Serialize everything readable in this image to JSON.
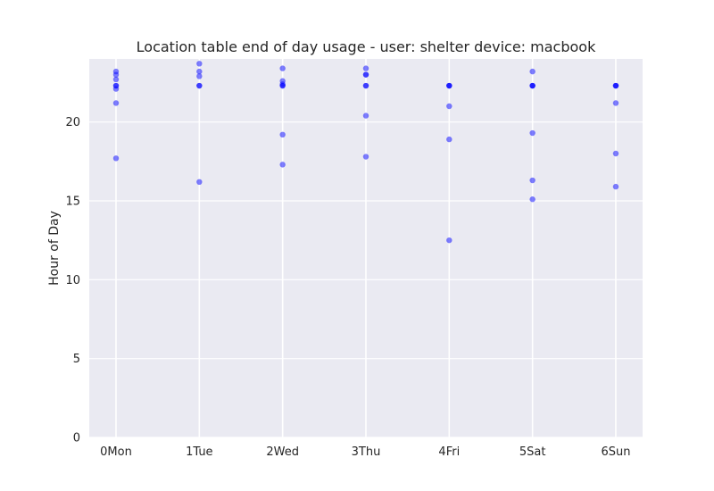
{
  "chart_data": {
    "type": "scatter",
    "title": "Location table end of day usage -  user: shelter device: macbook",
    "xlabel": "",
    "ylabel": "Hour of Day",
    "categories": [
      "0Mon",
      "1Tue",
      "2Wed",
      "3Thu",
      "4Fri",
      "5Sat",
      "6Sun"
    ],
    "ylim": [
      0,
      24
    ],
    "yticks": [
      0,
      5,
      10,
      15,
      20
    ],
    "grid": true,
    "point_color": "#0000ff",
    "background_color": "#eaeaf2",
    "grid_color": "#ffffff",
    "points": [
      {
        "x": 0,
        "y": 23.2
      },
      {
        "x": 0,
        "y": 23.0
      },
      {
        "x": 0,
        "y": 22.7
      },
      {
        "x": 0,
        "y": 22.3
      },
      {
        "x": 0,
        "y": 22.3
      },
      {
        "x": 0,
        "y": 22.1
      },
      {
        "x": 0,
        "y": 21.2
      },
      {
        "x": 0,
        "y": 17.7
      },
      {
        "x": 1,
        "y": 23.7
      },
      {
        "x": 1,
        "y": 23.2
      },
      {
        "x": 1,
        "y": 22.9
      },
      {
        "x": 1,
        "y": 22.3
      },
      {
        "x": 1,
        "y": 22.3
      },
      {
        "x": 1,
        "y": 16.2
      },
      {
        "x": 2,
        "y": 23.4
      },
      {
        "x": 2,
        "y": 22.6
      },
      {
        "x": 2,
        "y": 22.4
      },
      {
        "x": 2,
        "y": 22.3
      },
      {
        "x": 2,
        "y": 22.3
      },
      {
        "x": 2,
        "y": 19.2
      },
      {
        "x": 2,
        "y": 17.3
      },
      {
        "x": 3,
        "y": 23.4
      },
      {
        "x": 3,
        "y": 23.0
      },
      {
        "x": 3,
        "y": 23.0
      },
      {
        "x": 3,
        "y": 22.3
      },
      {
        "x": 3,
        "y": 22.3
      },
      {
        "x": 3,
        "y": 20.4
      },
      {
        "x": 3,
        "y": 17.8
      },
      {
        "x": 4,
        "y": 22.3
      },
      {
        "x": 4,
        "y": 22.3
      },
      {
        "x": 4,
        "y": 22.3
      },
      {
        "x": 4,
        "y": 21.0
      },
      {
        "x": 4,
        "y": 18.9
      },
      {
        "x": 4,
        "y": 12.5
      },
      {
        "x": 5,
        "y": 23.2
      },
      {
        "x": 5,
        "y": 22.3
      },
      {
        "x": 5,
        "y": 22.3
      },
      {
        "x": 5,
        "y": 22.3
      },
      {
        "x": 5,
        "y": 19.3
      },
      {
        "x": 5,
        "y": 16.3
      },
      {
        "x": 5,
        "y": 15.1
      },
      {
        "x": 6,
        "y": 22.3
      },
      {
        "x": 6,
        "y": 22.3
      },
      {
        "x": 6,
        "y": 22.3
      },
      {
        "x": 6,
        "y": 21.2
      },
      {
        "x": 6,
        "y": 18.0
      },
      {
        "x": 6,
        "y": 15.9
      }
    ]
  }
}
